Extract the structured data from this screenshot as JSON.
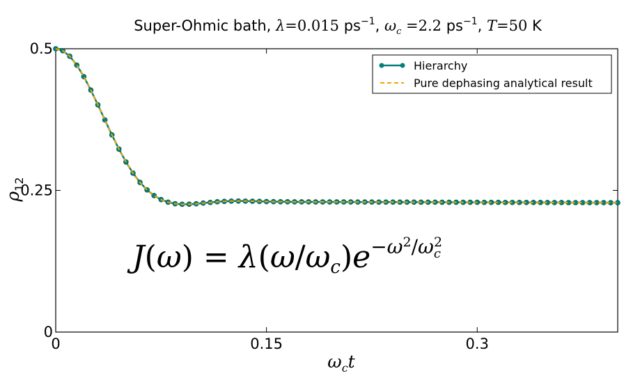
{
  "chart_data": {
    "type": "line",
    "title": {
      "prefix": "Super-Ohmic bath, ",
      "lambda_sym": "λ",
      "lambda_val": "=0.015",
      "lambda_unit": " ps",
      "lambda_exp": "−1",
      "sep1": ", ",
      "omega_sym": "ω",
      "omega_sub": "c",
      "omega_val": " =2.2",
      "omega_unit": " ps",
      "omega_exp": "−1",
      "sep2": ", ",
      "T_sym": "T",
      "T_val": "=50",
      "T_unit": " K"
    },
    "xlabel": {
      "sym": "ω",
      "sub": "c",
      "var": "t"
    },
    "ylabel": {
      "sym": "ρ",
      "sub": "12"
    },
    "xlim": [
      0,
      0.4
    ],
    "ylim": [
      0,
      0.5
    ],
    "xticks": [
      {
        "value": 0,
        "label": "0"
      },
      {
        "value": 0.15,
        "label": "0.15"
      },
      {
        "value": 0.3,
        "label": "0.3"
      }
    ],
    "yticks": [
      {
        "value": 0,
        "label": "0"
      },
      {
        "value": 0.25,
        "label": "0.25"
      },
      {
        "value": 0.5,
        "label": "0.5"
      }
    ],
    "grid": false,
    "legend_position": "top-right",
    "series": [
      {
        "name": "Hierarchy",
        "style": "solid-line-with-circle-markers",
        "color": "#00807a",
        "x_start": 0,
        "x_end": 0.4,
        "x_step": 0.005,
        "values": [
          0.5,
          0.4966,
          0.4867,
          0.4711,
          0.4508,
          0.427,
          0.4011,
          0.3743,
          0.3479,
          0.3229,
          0.3002,
          0.2805,
          0.2641,
          0.2509,
          0.2409,
          0.2338,
          0.2292,
          0.2265,
          0.2255,
          0.2256,
          0.2264,
          0.2276,
          0.2288,
          0.2299,
          0.2306,
          0.2311,
          0.2312,
          0.2311,
          0.2309,
          0.2306,
          0.2303,
          0.2301,
          0.23,
          0.2299,
          0.2298,
          0.2298,
          0.2298,
          0.2297,
          0.2297,
          0.2297,
          0.2296,
          0.2296,
          0.2296,
          0.2295,
          0.2295,
          0.2295,
          0.2294,
          0.2294,
          0.2294,
          0.2293,
          0.2293,
          0.2293,
          0.2292,
          0.2292,
          0.2292,
          0.2291,
          0.2291,
          0.2291,
          0.229,
          0.229,
          0.229,
          0.2289,
          0.2289,
          0.2289,
          0.2288,
          0.2288,
          0.2288,
          0.2287,
          0.2287,
          0.2287,
          0.2286,
          0.2286,
          0.2286,
          0.2285,
          0.2285,
          0.2285,
          0.2284,
          0.2284,
          0.2284,
          0.2283,
          0.2283
        ]
      },
      {
        "name": "Pure dephasing analytical result",
        "style": "dashed-line",
        "color": "#f5a300",
        "x_start": 0,
        "x_end": 0.4,
        "x_step": 0.005,
        "values": [
          0.5,
          0.4966,
          0.4867,
          0.4711,
          0.4508,
          0.427,
          0.4011,
          0.3743,
          0.3479,
          0.3229,
          0.3002,
          0.2805,
          0.2641,
          0.2509,
          0.2409,
          0.2338,
          0.2292,
          0.2265,
          0.2255,
          0.2256,
          0.2264,
          0.2276,
          0.2288,
          0.2299,
          0.2306,
          0.2311,
          0.2312,
          0.2311,
          0.2309,
          0.2306,
          0.2303,
          0.2301,
          0.23,
          0.2299,
          0.2298,
          0.2298,
          0.2298,
          0.2297,
          0.2297,
          0.2297,
          0.2296,
          0.2296,
          0.2296,
          0.2295,
          0.2295,
          0.2295,
          0.2294,
          0.2294,
          0.2294,
          0.2293,
          0.2293,
          0.2293,
          0.2292,
          0.2292,
          0.2292,
          0.2291,
          0.2291,
          0.2291,
          0.229,
          0.229,
          0.229,
          0.2289,
          0.2289,
          0.2289,
          0.2288,
          0.2288,
          0.2288,
          0.2287,
          0.2287,
          0.2287,
          0.2286,
          0.2286,
          0.2286,
          0.2285,
          0.2285,
          0.2285,
          0.2284,
          0.2284,
          0.2284,
          0.2283,
          0.2283
        ]
      }
    ],
    "annotation": {
      "J": "J",
      "omega": "ω",
      "eq": "=",
      "lambda": "λ",
      "omega_c": "ω",
      "c": "c",
      "e": "e",
      "exp_minus": "−",
      "exp_omega": "ω",
      "exp_2": "2",
      "exp_slash": "/",
      "exp_omega_c": "ω",
      "exp_c": "c",
      "exp_c2": "2",
      "open": "(",
      "close": ")",
      "slash": "/"
    }
  }
}
